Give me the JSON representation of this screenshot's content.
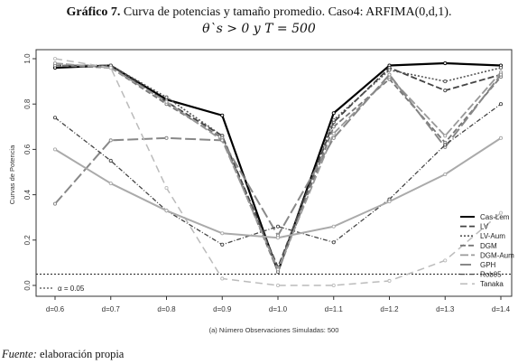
{
  "title_prefix": "Gráfico 7.",
  "title_rest": " Curva de potencias y tamaño promedio. Caso4: ARFIMA(0,d,1).",
  "subtitle": "θ`s > 0 y T = 500",
  "source_label": "Fuente:",
  "source_text": " elaboración propia",
  "chart_data": {
    "type": "line",
    "xlabel": "(a) Número Observaciones Simuladas: 500",
    "ylabel": "Curvas de Potencia",
    "categories": [
      "d=0.6",
      "d=0.7",
      "d=0.8",
      "d=0.9",
      "d=1.0",
      "d=1.1",
      "d=1.2",
      "d=1.3",
      "d=1.4"
    ],
    "ylim": [
      0,
      1.0
    ],
    "yticks": [
      0.0,
      0.2,
      0.4,
      0.6,
      0.8,
      1.0
    ],
    "ytick_labels": [
      "0.0",
      "0.2",
      "0.4",
      "0.6",
      "0.8",
      "1.0"
    ],
    "alpha_line": {
      "value": 0.05,
      "label": "α = 0.05"
    },
    "legend_position": "bottom-right",
    "series": [
      {
        "name": "Cas-Lem",
        "values": [
          0.96,
          0.97,
          0.82,
          0.75,
          0.06,
          0.76,
          0.97,
          0.98,
          0.97
        ],
        "color": "#000000",
        "dash": "",
        "width": 2.2
      },
      {
        "name": "LV",
        "values": [
          0.97,
          0.97,
          0.81,
          0.66,
          0.08,
          0.72,
          0.96,
          0.86,
          0.93
        ],
        "color": "#444444",
        "dash": "7,3",
        "width": 1.8
      },
      {
        "name": "LV-Aum",
        "values": [
          0.97,
          0.97,
          0.83,
          0.66,
          0.07,
          0.73,
          0.95,
          0.9,
          0.96
        ],
        "color": "#555555",
        "dash": "2,2",
        "width": 1.6
      },
      {
        "name": "DGM",
        "values": [
          0.97,
          0.96,
          0.8,
          0.65,
          0.06,
          0.7,
          0.91,
          0.63,
          0.92
        ],
        "color": "#777777",
        "dash": "6,3",
        "width": 1.8
      },
      {
        "name": "DGM-Aum",
        "values": [
          0.98,
          0.96,
          0.81,
          0.64,
          0.07,
          0.67,
          0.92,
          0.66,
          0.94
        ],
        "color": "#999999",
        "dash": "9,3",
        "width": 1.8
      },
      {
        "name": "GPH",
        "values": [
          0.36,
          0.64,
          0.65,
          0.64,
          0.22,
          0.65,
          0.93,
          0.61,
          0.93
        ],
        "color": "#888888",
        "dash": "12,4",
        "width": 2.0
      },
      {
        "name": "Rob05",
        "values": [
          0.74,
          0.55,
          0.33,
          0.18,
          0.26,
          0.19,
          0.38,
          0.62,
          0.8
        ],
        "color": "#444444",
        "dash": "5,2,1,2",
        "width": 1.3
      },
      {
        "name": "Tanaka",
        "values": [
          1.0,
          0.96,
          0.43,
          0.03,
          0.0,
          0.0,
          0.02,
          0.11,
          0.32
        ],
        "color": "#bbbbbb",
        "dash": "8,5",
        "width": 1.5
      },
      {
        "name": "",
        "values": [
          0.6,
          0.45,
          0.33,
          0.23,
          0.21,
          0.26,
          0.37,
          0.49,
          0.65
        ],
        "color": "#aaaaaa",
        "dash": "",
        "width": 2.0
      }
    ]
  }
}
